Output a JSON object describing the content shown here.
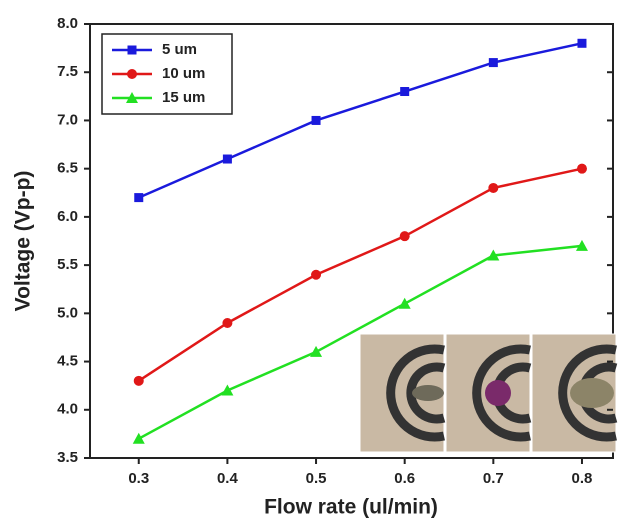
{
  "chart_data": {
    "type": "line",
    "x_label": "Flow rate (ul/min)",
    "y_label": "Voltage (Vp-p)",
    "x": [
      0.3,
      0.4,
      0.5,
      0.6,
      0.7,
      0.8
    ],
    "series": [
      {
        "name": "5 um",
        "color": "#1a1adc",
        "marker": "square",
        "values": [
          6.2,
          6.6,
          7.0,
          7.3,
          7.6,
          7.8
        ]
      },
      {
        "name": "10 um",
        "color": "#e01818",
        "marker": "circle",
        "values": [
          4.3,
          4.9,
          5.4,
          5.8,
          6.3,
          6.5
        ]
      },
      {
        "name": "15 um",
        "color": "#22e022",
        "marker": "triangle",
        "values": [
          3.7,
          4.2,
          4.6,
          5.1,
          5.6,
          5.7
        ]
      }
    ],
    "xlim": [
      0.245,
      0.835
    ],
    "ylim": [
      3.5,
      8.0
    ],
    "xticks": [
      0.3,
      0.4,
      0.5,
      0.6,
      0.7,
      0.8
    ],
    "yticks": [
      3.5,
      {
        "value": 4,
        "label": "4.0"
      },
      4.5,
      {
        "value": 5,
        "label": "5.0"
      },
      5.5,
      {
        "value": 6,
        "label": "6.0"
      },
      6.5,
      {
        "value": 7,
        "label": "7.0"
      },
      7.5,
      {
        "value": 8,
        "label": "8.0"
      }
    ],
    "legend": "upper left",
    "grid": false
  }
}
